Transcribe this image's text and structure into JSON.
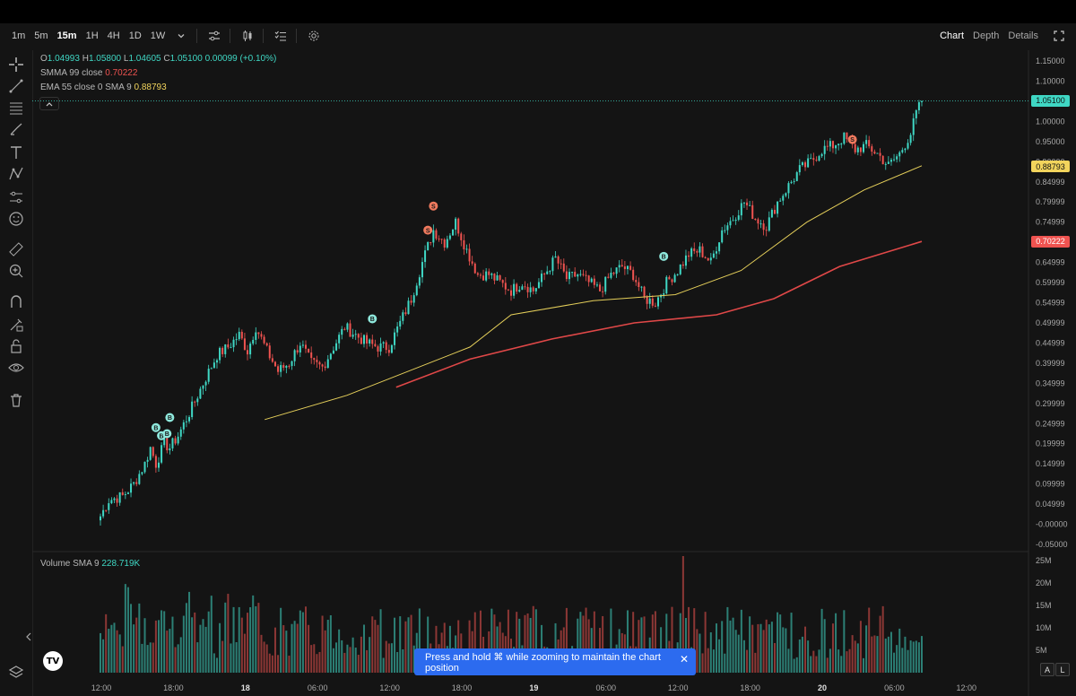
{
  "toolbar": {
    "timeframes": [
      "1m",
      "5m",
      "15m",
      "1H",
      "4H",
      "1D",
      "1W"
    ],
    "active_timeframe": "15m",
    "view_tabs": [
      "Chart",
      "Depth",
      "Details"
    ],
    "active_view": "Chart",
    "icons": [
      "chevron-down-icon",
      "indicators-icon",
      "candles-icon",
      "checklist-icon",
      "settings-icon",
      "fullscreen-icon"
    ]
  },
  "legend": {
    "ohlc": {
      "o_label": "O",
      "o": "1.04993",
      "h_label": "H",
      "h": "1.05800",
      "l_label": "L",
      "l": "1.04605",
      "c_label": "C",
      "c": "1.05100",
      "change": "0.00099 (+0.10%)"
    },
    "smma": {
      "label": "SMMA 99 close",
      "value": "0.70222"
    },
    "ema": {
      "label": "EMA 55 close 0 SMA 9",
      "value": "0.88793"
    },
    "volume": {
      "label": "Volume SMA 9",
      "value": "228.719K"
    }
  },
  "price_tags": {
    "last": {
      "value": "1.05100",
      "color": "#3fd7c4"
    },
    "ema": {
      "value": "0.88793",
      "color": "#f2d45c"
    },
    "smma": {
      "value": "0.70222",
      "color": "#ef5350"
    }
  },
  "colors": {
    "up": "#3fd7c4",
    "down": "#ef5350",
    "ema_line": "#e5cf5a",
    "smma_line": "#e04848",
    "accent": "#2c6bef"
  },
  "toast": {
    "text": "Press and hold ⌘ while zooming to maintain the chart position"
  },
  "bottom_buttons": {
    "auto": "A",
    "log": "L"
  },
  "logo": "TV",
  "chart_data": {
    "type": "candlestick",
    "y_axis": {
      "ticks": [
        "1.15000",
        "1.10000",
        "1.05000",
        "1.00000",
        "0.95000",
        "0.90000",
        "0.84999",
        "0.79999",
        "0.74999",
        "0.69999",
        "0.64999",
        "0.59999",
        "0.54999",
        "0.49999",
        "0.44999",
        "0.39999",
        "0.34999",
        "0.29999",
        "0.24999",
        "0.19999",
        "0.14999",
        "0.09999",
        "0.04999",
        "-0.00000",
        "-0.05000"
      ],
      "range": [
        -0.05,
        1.15
      ]
    },
    "volume_axis": {
      "ticks": [
        "25M",
        "20M",
        "15M",
        "10M",
        "5M"
      ],
      "range": [
        0,
        25
      ]
    },
    "x_axis": {
      "ticks": [
        "12:00",
        "18:00",
        "18",
        "06:00",
        "12:00",
        "18:00",
        "19",
        "06:00",
        "12:00",
        "18:00",
        "20",
        "06:00",
        "12:00"
      ]
    },
    "price_anchors": [
      [
        0,
        0.02
      ],
      [
        3,
        0.06
      ],
      [
        8,
        0.07
      ],
      [
        12,
        0.1
      ],
      [
        16,
        0.15
      ],
      [
        18,
        0.19
      ],
      [
        20,
        0.15
      ],
      [
        23,
        0.2
      ],
      [
        25,
        0.19
      ],
      [
        28,
        0.22
      ],
      [
        33,
        0.29
      ],
      [
        37,
        0.35
      ],
      [
        42,
        0.42
      ],
      [
        46,
        0.44
      ],
      [
        50,
        0.47
      ],
      [
        53,
        0.43
      ],
      [
        56,
        0.49
      ],
      [
        60,
        0.43
      ],
      [
        64,
        0.38
      ],
      [
        68,
        0.4
      ],
      [
        72,
        0.45
      ],
      [
        76,
        0.4
      ],
      [
        80,
        0.39
      ],
      [
        84,
        0.44
      ],
      [
        88,
        0.49
      ],
      [
        92,
        0.47
      ],
      [
        96,
        0.45
      ],
      [
        100,
        0.44
      ],
      [
        104,
        0.44
      ],
      [
        108,
        0.5
      ],
      [
        112,
        0.56
      ],
      [
        116,
        0.65
      ],
      [
        120,
        0.73
      ],
      [
        124,
        0.7
      ],
      [
        128,
        0.75
      ],
      [
        132,
        0.68
      ],
      [
        136,
        0.62
      ],
      [
        140,
        0.62
      ],
      [
        144,
        0.6
      ],
      [
        148,
        0.58
      ],
      [
        152,
        0.6
      ],
      [
        156,
        0.58
      ],
      [
        160,
        0.62
      ],
      [
        164,
        0.66
      ],
      [
        168,
        0.61
      ],
      [
        172,
        0.62
      ],
      [
        176,
        0.6
      ],
      [
        180,
        0.58
      ],
      [
        184,
        0.62
      ],
      [
        188,
        0.64
      ],
      [
        192,
        0.62
      ],
      [
        196,
        0.56
      ],
      [
        200,
        0.55
      ],
      [
        204,
        0.6
      ],
      [
        208,
        0.63
      ],
      [
        212,
        0.67
      ],
      [
        216,
        0.68
      ],
      [
        220,
        0.65
      ],
      [
        224,
        0.73
      ],
      [
        228,
        0.76
      ],
      [
        232,
        0.8
      ],
      [
        236,
        0.76
      ],
      [
        240,
        0.74
      ],
      [
        244,
        0.8
      ],
      [
        248,
        0.84
      ],
      [
        252,
        0.88
      ],
      [
        256,
        0.9
      ],
      [
        260,
        0.93
      ],
      [
        264,
        0.94
      ],
      [
        268,
        0.96
      ],
      [
        272,
        0.93
      ],
      [
        276,
        0.94
      ],
      [
        280,
        0.92
      ],
      [
        284,
        0.89
      ],
      [
        288,
        0.92
      ],
      [
        292,
        0.97
      ],
      [
        294,
        1.02
      ],
      [
        296,
        1.05
      ]
    ],
    "ema55": [
      [
        0.2,
        0.26
      ],
      [
        0.3,
        0.32
      ],
      [
        0.45,
        0.44
      ],
      [
        0.5,
        0.52
      ],
      [
        0.6,
        0.555
      ],
      [
        0.7,
        0.57
      ],
      [
        0.78,
        0.63
      ],
      [
        0.86,
        0.75
      ],
      [
        0.93,
        0.83
      ],
      [
        1.0,
        0.89
      ]
    ],
    "smma99": [
      [
        0.36,
        0.34
      ],
      [
        0.45,
        0.41
      ],
      [
        0.55,
        0.46
      ],
      [
        0.65,
        0.5
      ],
      [
        0.75,
        0.52
      ],
      [
        0.82,
        0.56
      ],
      [
        0.9,
        0.64
      ],
      [
        1.0,
        0.702
      ]
    ],
    "markers": [
      {
        "label": "B",
        "side": "buy",
        "candle": 20,
        "price": 0.24
      },
      {
        "label": "B",
        "side": "buy",
        "candle": 22,
        "price": 0.22
      },
      {
        "label": "B",
        "side": "buy",
        "candle": 24,
        "price": 0.225
      },
      {
        "label": "B",
        "side": "buy",
        "candle": 25,
        "price": 0.265
      },
      {
        "label": "B",
        "side": "buy",
        "candle": 98,
        "price": 0.51
      },
      {
        "label": "S",
        "side": "sell",
        "candle": 118,
        "price": 0.73
      },
      {
        "label": "S",
        "side": "sell",
        "candle": 120,
        "price": 0.79
      },
      {
        "label": "B",
        "side": "buy",
        "candle": 203,
        "price": 0.665
      },
      {
        "label": "S",
        "side": "sell",
        "candle": 271,
        "price": 0.955
      }
    ]
  }
}
